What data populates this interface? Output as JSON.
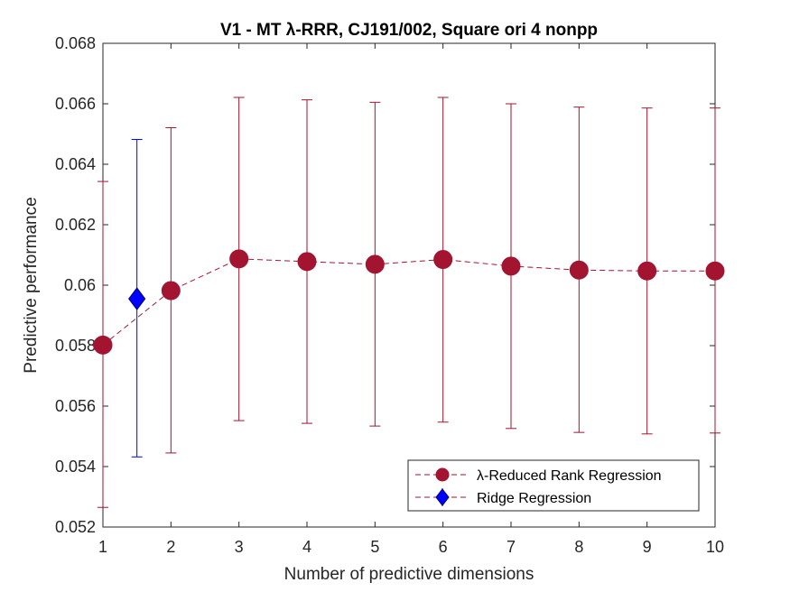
{
  "chart_data": {
    "type": "line",
    "title": "V1 - MT λ-RRR, CJ191/002, Square ori 4 nonpp",
    "xlabel": "Number of predictive dimensions",
    "ylabel": "Predictive performance",
    "xlim": [
      1,
      10
    ],
    "ylim": [
      0.052,
      0.068
    ],
    "xticks": [
      1,
      2,
      3,
      4,
      5,
      6,
      7,
      8,
      9,
      10
    ],
    "xtick_labels": [
      "1",
      "2",
      "3",
      "4",
      "5",
      "6",
      "7",
      "8",
      "9",
      "10"
    ],
    "yticks": [
      0.052,
      0.054,
      0.056,
      0.058,
      0.06,
      0.062,
      0.064,
      0.066,
      0.068
    ],
    "ytick_labels": [
      "0.052",
      "0.054",
      "0.056",
      "0.058",
      "0.06",
      "0.062",
      "0.064",
      "0.066",
      "0.068"
    ],
    "grid": false,
    "legend_position": "bottom-right",
    "series": [
      {
        "name": "λ-Reduced Rank Regression",
        "color": "#a2142f",
        "marker": "circle",
        "line_style": "dashed",
        "x": [
          1,
          2,
          3,
          4,
          5,
          6,
          7,
          8,
          9,
          10
        ],
        "y": [
          0.05802,
          0.05982,
          0.06087,
          0.06078,
          0.06069,
          0.06085,
          0.06063,
          0.0605,
          0.06047,
          0.06047
        ],
        "err_low": [
          0.05265,
          0.05445,
          0.05552,
          0.05543,
          0.05534,
          0.05547,
          0.05526,
          0.05513,
          0.05508,
          0.05511
        ],
        "err_high": [
          0.06343,
          0.06521,
          0.06621,
          0.06613,
          0.06605,
          0.06621,
          0.066,
          0.06589,
          0.06586,
          0.06586
        ]
      },
      {
        "name": "Ridge Regression",
        "color": "#0000ff",
        "marker": "diamond",
        "x": [
          1.5
        ],
        "y": [
          0.05955
        ],
        "err_low": [
          0.05432
        ],
        "err_high": [
          0.06482
        ]
      }
    ]
  }
}
